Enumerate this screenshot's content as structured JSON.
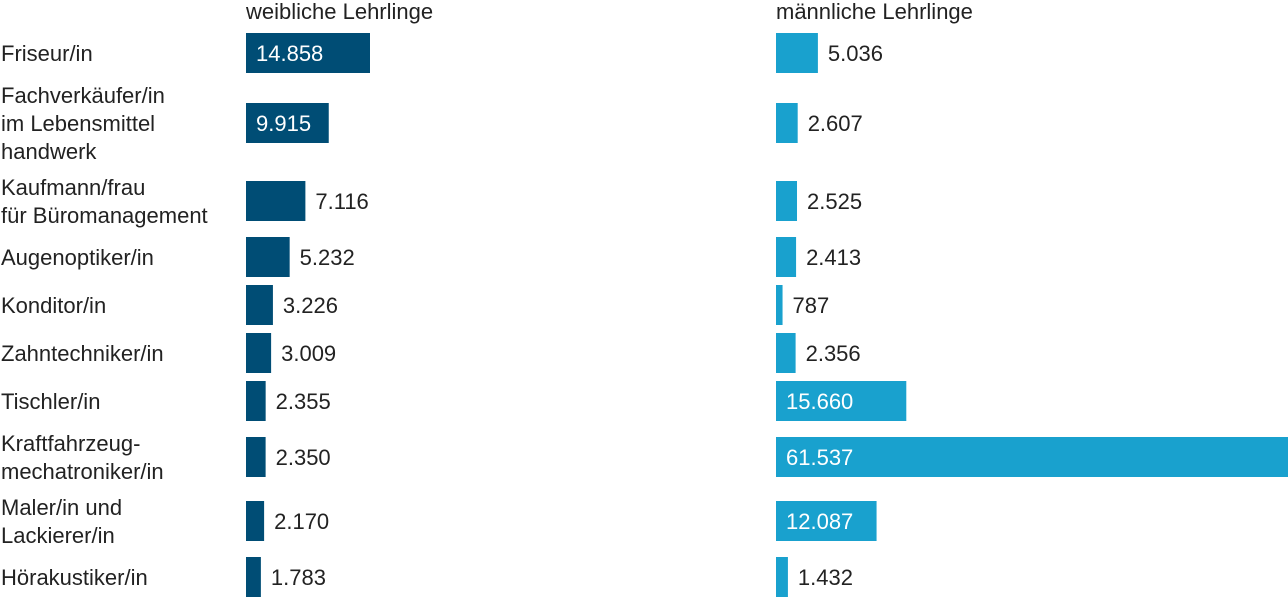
{
  "chart_data": {
    "type": "bar",
    "orientation": "horizontal",
    "layout": "two panels side by side",
    "categories": [
      [
        "Friseur/in"
      ],
      [
        "Fachverkäufer/in",
        "im Lebensmittel",
        "handwerk"
      ],
      [
        "Kaufmann/frau",
        "für Büromanagement"
      ],
      [
        "Augenoptiker/in"
      ],
      [
        "Konditor/in"
      ],
      [
        "Zahntechniker/in"
      ],
      [
        "Tischler/in"
      ],
      [
        "Kraftfahrzeug-",
        "mechatroniker/in"
      ],
      [
        "Maler/in und",
        "Lackierer/in"
      ],
      [
        "Hörakustiker/in"
      ]
    ],
    "series": [
      {
        "name": "weibliche Lehrlinge",
        "color": "#004d75",
        "values": [
          14858,
          9915,
          7116,
          5232,
          3226,
          3009,
          2355,
          2350,
          2170,
          1783
        ],
        "labels": [
          "14.858",
          "9.915",
          "7.116",
          "5.232",
          "3.226",
          "3.009",
          "2.355",
          "2.350",
          "2.170",
          "1.783"
        ]
      },
      {
        "name": "männliche Lehrlinge",
        "color": "#19a1ce",
        "values": [
          5036,
          2607,
          2525,
          2413,
          787,
          2356,
          15660,
          61537,
          12087,
          1432
        ],
        "labels": [
          "5.036",
          "2.607",
          "2.525",
          "2.413",
          "787",
          "2.356",
          "15.660",
          "61.537",
          "12.087",
          "1.432"
        ]
      }
    ],
    "grid": false,
    "legend": "series names as panel headers",
    "data_labels": "inside bar (white) when wide, otherwise right of bar"
  }
}
